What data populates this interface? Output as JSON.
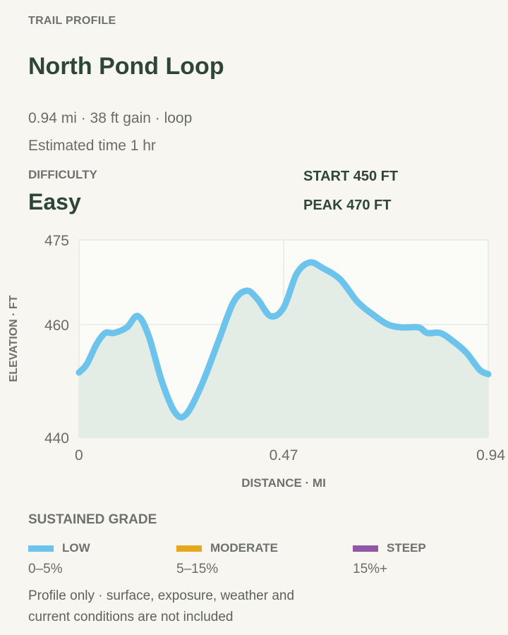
{
  "header": {
    "eyebrow": "TRAIL PROFILE",
    "title": "North Pond Loop",
    "meta_line1": "0.94 mi · 38 ft gain · loop",
    "meta_line2": "Estimated time 1 hr"
  },
  "difficulty": {
    "label": "DIFFICULTY",
    "value": "Easy"
  },
  "stats": {
    "start": "START 450 FT",
    "peak": "PEAK 470 FT"
  },
  "chart_data": {
    "type": "area",
    "xlabel": "DISTANCE · MI",
    "ylabel": "ELEVATION · FT",
    "xlim": [
      0,
      0.94
    ],
    "ylim": [
      440,
      475
    ],
    "x_ticks": [
      "0",
      "0.47",
      "0.94"
    ],
    "y_ticks": [
      "475",
      "460",
      "440"
    ],
    "grid": true,
    "series": [
      {
        "x": [
          0,
          0.018,
          0.04,
          0.06,
          0.08,
          0.11,
          0.135,
          0.16,
          0.19,
          0.22,
          0.245,
          0.28,
          0.32,
          0.355,
          0.385,
          0.41,
          0.44,
          0.47,
          0.5,
          0.53,
          0.56,
          0.6,
          0.64,
          0.68,
          0.71,
          0.74,
          0.78,
          0.8,
          0.83,
          0.86,
          0.89,
          0.92,
          0.94
        ],
        "y": [
          451.5,
          453,
          456.5,
          458.5,
          458.5,
          459.5,
          461.5,
          458,
          450,
          444.5,
          444,
          449,
          457,
          464,
          466,
          464.5,
          461.5,
          463,
          469,
          471,
          470,
          468,
          464,
          461.5,
          460,
          459.5,
          459.5,
          458.5,
          458.5,
          457,
          455,
          452,
          451.2
        ]
      }
    ],
    "line_color": "#6cc3ec",
    "fill_color": "#e4ede5"
  },
  "legend": {
    "title": "SUSTAINED GRADE",
    "items": [
      {
        "name": "LOW",
        "range": "0–5%",
        "color": "#6cc3ec"
      },
      {
        "name": "MODERATE",
        "range": "5–15%",
        "color": "#e5a81f"
      },
      {
        "name": "STEEP",
        "range": "15%+",
        "color": "#9158a6"
      }
    ]
  },
  "footnote": "Profile only · surface, exposure, weather and current conditions are not included"
}
